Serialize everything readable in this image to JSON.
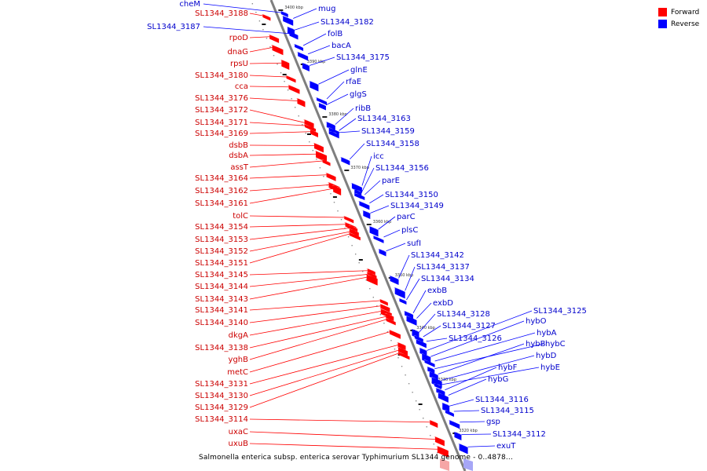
{
  "legend": {
    "forward_label": "Forward",
    "reverse_label": "Reverse",
    "forward_color": "#ff0000",
    "reverse_color": "#0000ff"
  },
  "caption": "Salmonella enterica subsp. enterica serovar Typhimurium SL1344 genome - 0..4878...",
  "scale_ticks": [
    "3400 kbp",
    "3390 kbp",
    "3380 kbp",
    "3370 kbp",
    "3360 kbp",
    "3350 kbp",
    "3340 kbp",
    "3330 kbp",
    "3320 kbp"
  ],
  "forward_genes": [
    "SL1344_3188",
    "rpoD",
    "dnaG",
    "rpsU",
    "SL1344_3180",
    "cca",
    "SL1344_3176",
    "SL1344_3172",
    "SL1344_3171",
    "SL1344_3169",
    "dsbB",
    "dsbA",
    "assT",
    "SL1344_3164",
    "SL1344_3162",
    "SL1344_3161",
    "tolC",
    "SL1344_3154",
    "SL1344_3153",
    "SL1344_3152",
    "SL1344_3151",
    "SL1344_3145",
    "SL1344_3144",
    "SL1344_3143",
    "SL1344_3141",
    "SL1344_3140",
    "dkgA",
    "SL1344_3138",
    "yghB",
    "metC",
    "SL1344_3131",
    "SL1344_3130",
    "SL1344_3129",
    "SL1344_3114",
    "uxaC",
    "uxuB"
  ],
  "reverse_genes": [
    "cheM",
    "SL1344_3187",
    "mug",
    "SL1344_3182",
    "folB",
    "bacA",
    "SL1344_3175",
    "glnE",
    "rfaE",
    "glgS",
    "ribB",
    "SL1344_3163",
    "SL1344_3159",
    "SL1344_3158",
    "icc",
    "SL1344_3156",
    "parE",
    "SL1344_3150",
    "SL1344_3149",
    "parC",
    "plsC",
    "sufI",
    "SL1344_3142",
    "SL1344_3137",
    "SL1344_3134",
    "exbB",
    "exbD",
    "SL1344_3128",
    "SL1344_3127",
    "SL1344_3126",
    "SL1344_3125",
    "hybO",
    "hybA",
    "hybC",
    "hybB",
    "hybD",
    "hybE",
    "hybF",
    "hybG",
    "SL1344_3116",
    "SL1344_3115",
    "gsp",
    "SL1344_3112",
    "exuT"
  ]
}
